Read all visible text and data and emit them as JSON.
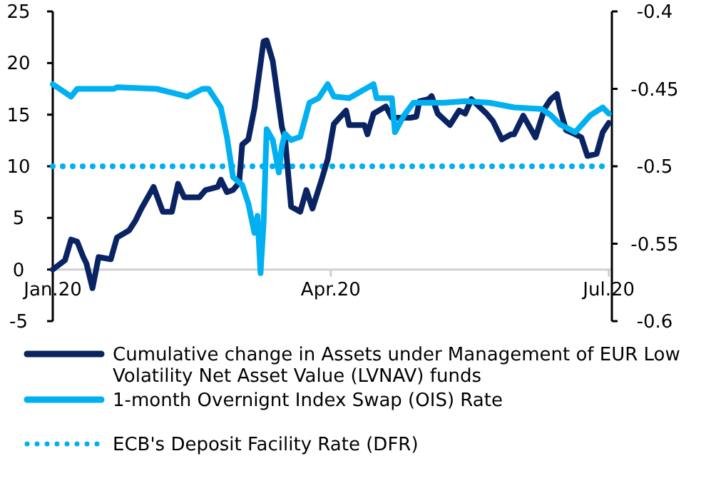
{
  "chart_data": {
    "type": "line",
    "xlim": [
      "2020-01-01",
      "2020-07-02"
    ],
    "xticks": [
      {
        "value": "2020-01-01",
        "label": "Jan.20"
      },
      {
        "value": "2020-04-01",
        "label": "Apr.20"
      },
      {
        "value": "2020-07-01",
        "label": "Jul.20"
      }
    ],
    "ylim": [
      -5,
      25
    ],
    "yticks": [
      25,
      20,
      15,
      10,
      5,
      0,
      -5
    ],
    "y2lim": [
      -0.6,
      -0.4
    ],
    "y2ticks": [
      -0.4,
      -0.45,
      -0.5,
      -0.55,
      -0.6
    ],
    "grid": false,
    "legend": "bottom",
    "line_style": "solid",
    "marker": "none",
    "series": [
      {
        "name": "Cumulative change in Assets under Management of EUR Low Volatility Net Asset Value (LVNAV) funds",
        "color": "#0a2463",
        "x": [
          "2020-01-01",
          "2020-01-05",
          "2020-01-07",
          "2020-01-09",
          "2020-01-11",
          "2020-01-12",
          "2020-01-14",
          "2020-01-16",
          "2020-01-20",
          "2020-01-22",
          "2020-01-26",
          "2020-01-28",
          "2020-01-30",
          "2020-02-03",
          "2020-02-06",
          "2020-02-09",
          "2020-02-11",
          "2020-02-13",
          "2020-02-18",
          "2020-02-20",
          "2020-02-24",
          "2020-02-25",
          "2020-02-27",
          "2020-02-29",
          "2020-03-02",
          "2020-03-03",
          "2020-03-05",
          "2020-03-07",
          "2020-03-10",
          "2020-03-11",
          "2020-03-13",
          "2020-03-16",
          "2020-03-17",
          "2020-03-19",
          "2020-03-22",
          "2020-03-24",
          "2020-03-26",
          "2020-03-29",
          "2020-03-31",
          "2020-04-02",
          "2020-04-06",
          "2020-04-07",
          "2020-04-12",
          "2020-04-13",
          "2020-04-15",
          "2020-04-19",
          "2020-04-21",
          "2020-04-23",
          "2020-04-27",
          "2020-04-29",
          "2020-04-30",
          "2020-05-03",
          "2020-05-04",
          "2020-05-06",
          "2020-05-10",
          "2020-05-13",
          "2020-05-15",
          "2020-05-17",
          "2020-05-22",
          "2020-05-24",
          "2020-05-27",
          "2020-05-30",
          "2020-05-31",
          "2020-06-03",
          "2020-06-07",
          "2020-06-10",
          "2020-06-12",
          "2020-06-14",
          "2020-06-15",
          "2020-06-17",
          "2020-06-20",
          "2020-06-22",
          "2020-06-24",
          "2020-06-27",
          "2020-06-29",
          "2020-07-01"
        ],
        "values": [
          0,
          0.9,
          2.9,
          2.7,
          1.2,
          0.6,
          -1.8,
          1.2,
          1,
          3.1,
          3.8,
          4.7,
          5.9,
          8,
          5.6,
          5.6,
          8.3,
          7,
          7,
          7.7,
          8,
          8.7,
          7.5,
          7.7,
          8.4,
          12.1,
          12.6,
          15.6,
          22.1,
          22.2,
          20.2,
          13.8,
          12.8,
          6.1,
          5.6,
          7.7,
          5.9,
          8.7,
          10.7,
          14.1,
          15.4,
          14,
          14,
          13.1,
          15.1,
          15.8,
          14.7,
          14.7,
          14.7,
          14.8,
          16.3,
          16.5,
          16.8,
          15.1,
          14,
          15.4,
          15.1,
          16.5,
          15.1,
          14.4,
          12.6,
          13.1,
          13.1,
          14.9,
          12.8,
          15.6,
          16.5,
          17,
          15.6,
          13.5,
          13.1,
          12.8,
          11,
          11.2,
          13.3,
          14.2
        ]
      },
      {
        "name": "1-month Overnignt Index Swap (OIS) Rate",
        "color": "#00b0f0",
        "axis": "y2",
        "x": [
          "2020-01-01",
          "2020-01-07",
          "2020-01-09",
          "2020-01-21",
          "2020-01-22",
          "2020-02-04",
          "2020-02-14",
          "2020-02-19",
          "2020-02-21",
          "2020-02-25",
          "2020-02-27",
          "2020-02-29",
          "2020-03-03",
          "2020-03-05",
          "2020-03-07",
          "2020-03-08",
          "2020-03-09",
          "2020-03-10",
          "2020-03-11",
          "2020-03-13",
          "2020-03-15",
          "2020-03-16",
          "2020-03-17",
          "2020-03-19",
          "2020-03-22",
          "2020-03-25",
          "2020-03-28",
          "2020-03-31",
          "2020-04-02",
          "2020-04-07",
          "2020-04-15",
          "2020-04-16",
          "2020-04-21",
          "2020-04-22",
          "2020-04-25",
          "2020-04-28",
          "2020-05-08",
          "2020-05-15",
          "2020-05-23",
          "2020-05-31",
          "2020-06-09",
          "2020-06-12",
          "2020-06-15",
          "2020-06-20",
          "2020-06-25",
          "2020-06-29",
          "2020-07-01"
        ],
        "values": [
          -0.447,
          -0.455,
          -0.45,
          -0.45,
          -0.449,
          -0.45,
          -0.455,
          -0.45,
          -0.45,
          -0.462,
          -0.481,
          -0.507,
          -0.512,
          -0.524,
          -0.543,
          -0.532,
          -0.569,
          -0.537,
          -0.476,
          -0.483,
          -0.504,
          -0.487,
          -0.479,
          -0.483,
          -0.481,
          -0.459,
          -0.456,
          -0.447,
          -0.455,
          -0.456,
          -0.447,
          -0.456,
          -0.456,
          -0.478,
          -0.467,
          -0.459,
          -0.459,
          -0.458,
          -0.459,
          -0.462,
          -0.463,
          -0.467,
          -0.473,
          -0.478,
          -0.467,
          -0.462,
          -0.466
        ]
      }
    ],
    "ref_lines": [
      {
        "axis": "y2",
        "value": -0.5,
        "label": "ECB's Deposit Facility Rate (DFR)",
        "color": "#00b0f0",
        "line_style": "dotted"
      }
    ]
  }
}
